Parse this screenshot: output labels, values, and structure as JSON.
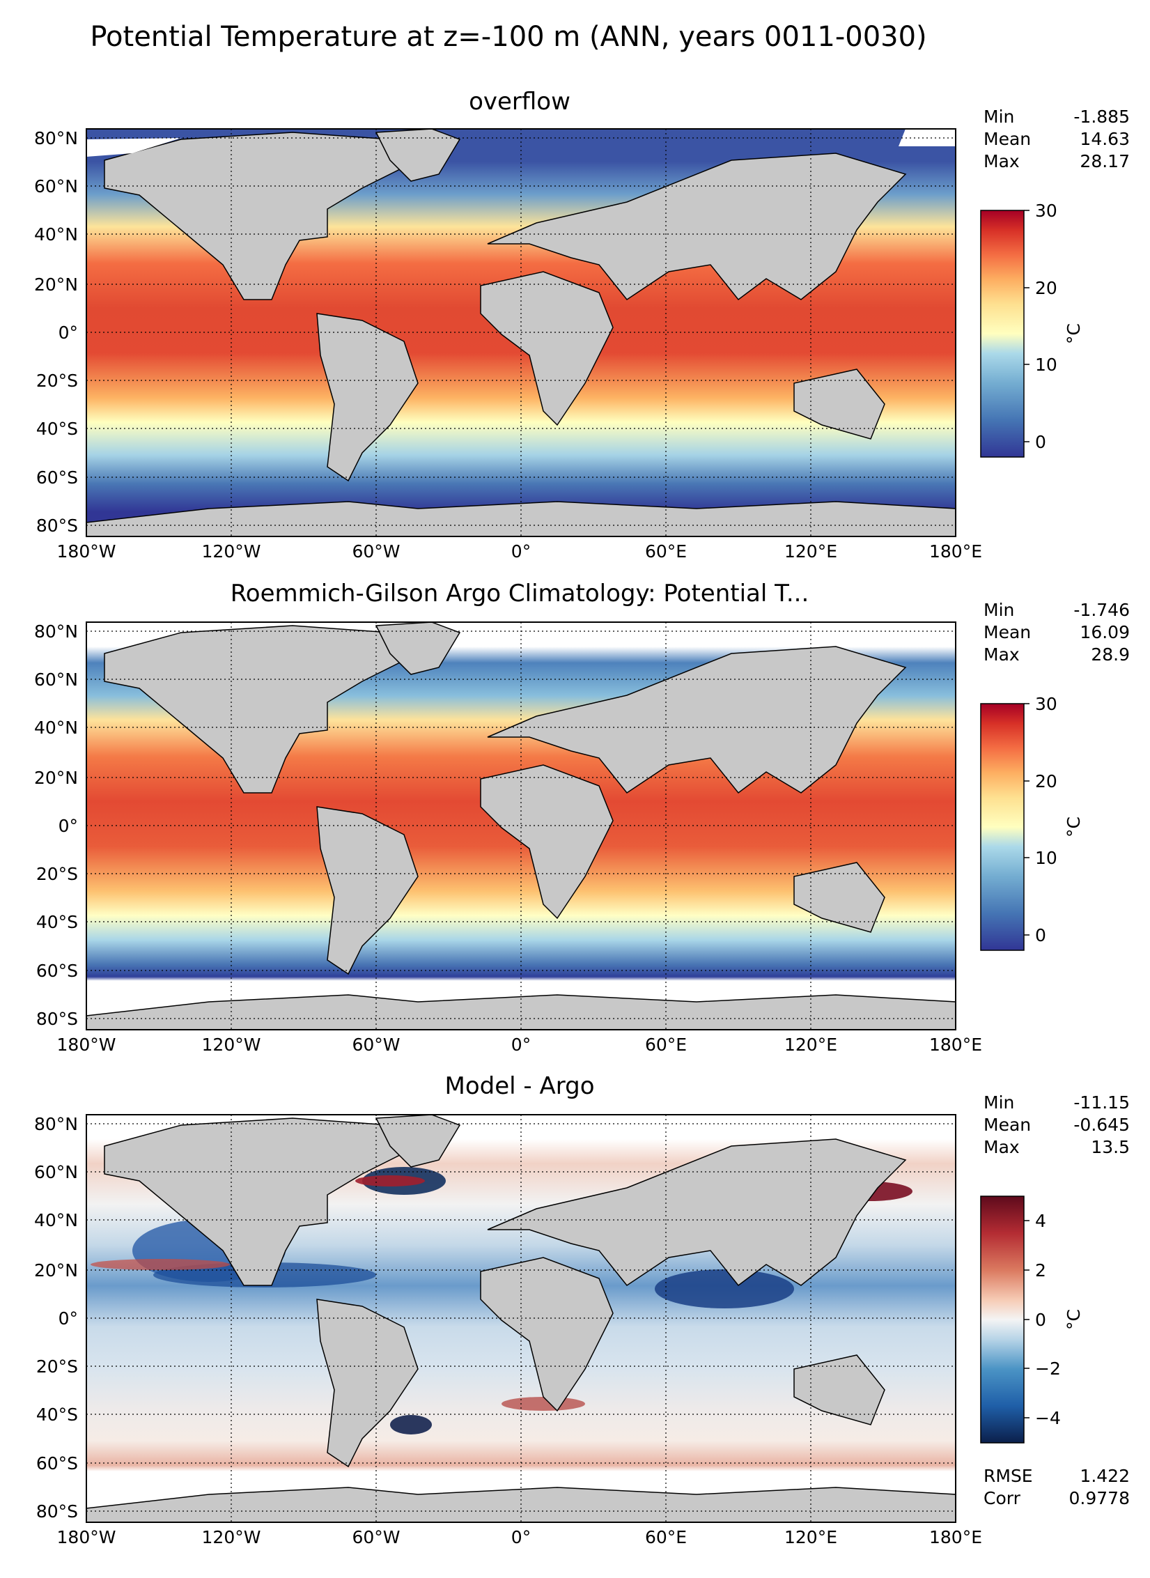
{
  "suptitle": "Potential Temperature at z=-100 m (ANN, years 0011-0030)",
  "lon_ticks": [
    "180°W",
    "120°W",
    "60°W",
    "0°",
    "60°E",
    "120°E",
    "180°E"
  ],
  "lat_ticks": [
    "80°N",
    "60°N",
    "40°N",
    "20°N",
    "0°",
    "20°S",
    "40°S",
    "60°S",
    "80°S"
  ],
  "panels": [
    {
      "title": "overflow",
      "stats": [
        {
          "label": "Min",
          "value": "-1.885"
        },
        {
          "label": "Mean",
          "value": "14.63"
        },
        {
          "label": "Max",
          "value": "28.17"
        }
      ],
      "colorbar": {
        "label": "°C",
        "ticks": [
          "0",
          "10",
          "20",
          "30"
        ],
        "range": [
          -2,
          30
        ],
        "cmap": "RdYlBu_r"
      }
    },
    {
      "title": "Roemmich-Gilson Argo Climatology: Potential T...",
      "stats": [
        {
          "label": "Min",
          "value": "-1.746"
        },
        {
          "label": "Mean",
          "value": "16.09"
        },
        {
          "label": "Max",
          "value": "28.9"
        }
      ],
      "colorbar": {
        "label": "°C",
        "ticks": [
          "0",
          "10",
          "20",
          "30"
        ],
        "range": [
          -2,
          30
        ],
        "cmap": "RdYlBu_r"
      }
    },
    {
      "title": "Model - Argo",
      "stats": [
        {
          "label": "Min",
          "value": "-11.15"
        },
        {
          "label": "Mean",
          "value": "-0.645"
        },
        {
          "label": "Max",
          "value": "13.5"
        }
      ],
      "stats2": [
        {
          "label": "RMSE",
          "value": "1.422"
        },
        {
          "label": "Corr",
          "value": "0.9778"
        }
      ],
      "colorbar": {
        "label": "°C",
        "ticks": [
          "−4",
          "−2",
          "0",
          "2",
          "4"
        ],
        "range": [
          -5,
          5
        ],
        "cmap": "RdBu_r"
      }
    }
  ],
  "chart_data": {
    "type": "heatmap",
    "title": "Potential Temperature at z=-100 m (ANN, years 0011-0030)",
    "xlabel": "",
    "ylabel": "",
    "xlim": [
      -180,
      180
    ],
    "ylim": [
      -85,
      85
    ],
    "grid": true,
    "maps": [
      {
        "name": "overflow",
        "units": "°C",
        "min": -1.885,
        "mean": 14.63,
        "max": 28.17,
        "clim": [
          -2,
          30
        ]
      },
      {
        "name": "Roemmich-Gilson Argo Climatology: Potential T...",
        "units": "°C",
        "min": -1.746,
        "mean": 16.09,
        "max": 28.9,
        "clim": [
          -2,
          30
        ]
      },
      {
        "name": "Model - Argo",
        "units": "°C",
        "min": -11.15,
        "mean": -0.645,
        "max": 13.5,
        "rmse": 1.422,
        "corr": 0.9778,
        "clim": [
          -5,
          5
        ]
      }
    ]
  }
}
